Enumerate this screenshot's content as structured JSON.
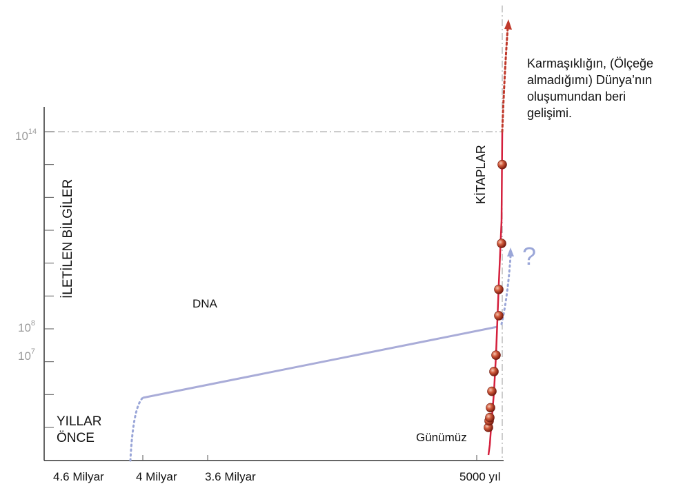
{
  "chart_data": {
    "type": "line",
    "ylabel": "İLETİLEN BİLGİLER",
    "x_corner_label": [
      "YILLAR",
      "ÖNCE"
    ],
    "x_tick_labels": [
      "4.6 Milyar",
      "4 Milyar",
      "3.6 Milyar",
      "5000 yıl"
    ],
    "y_scale": "log",
    "y_tick_labels": [
      {
        "base": "10",
        "exp": "14",
        "value_exp": 14
      },
      {
        "base": "10",
        "exp": "8",
        "value_exp": 8
      },
      {
        "base": "10",
        "exp": "7",
        "value_exp": 7
      }
    ],
    "y_minor_tick_exponents": [
      5,
      6,
      7,
      8,
      9,
      10,
      11,
      12,
      13,
      14
    ],
    "annotations": {
      "dna": "DNA",
      "books": "KİTAPLAR",
      "today": "Günümüz",
      "question": "?",
      "caption": [
        "Karmaşıklığın, (Ölçeğe",
        "almadığımı)  Dünya’nın",
        "oluşumundan beri",
        "gelişimi."
      ]
    },
    "series": [
      {
        "name": "DNA",
        "color": "#a9acd8",
        "segments": [
          "4.6 Milyar → 4 Milyar (dotted rise)",
          "4 Milyar → 5000 yıl (solid)",
          "5000 yıl → ? (dotted, uncertain)"
        ],
        "points_exp": [
          {
            "x": "4 Milyar",
            "y_exp": 5.9
          },
          {
            "x": "5000 yıl",
            "y_exp": 8.1
          }
        ]
      },
      {
        "name": "KİTAPLAR",
        "color": "#d41f3c",
        "marker_color": "#c0392b",
        "points_exp": [
          5.0,
          5.2,
          5.3,
          5.6,
          6.1,
          6.7,
          7.2,
          8.4,
          9.2,
          10.6,
          13.0
        ]
      }
    ],
    "colors": {
      "axis": "#333333",
      "guide": "#9a9a9a",
      "dna": "#a9acd8",
      "books": "#d41f3c"
    },
    "grid": false
  }
}
